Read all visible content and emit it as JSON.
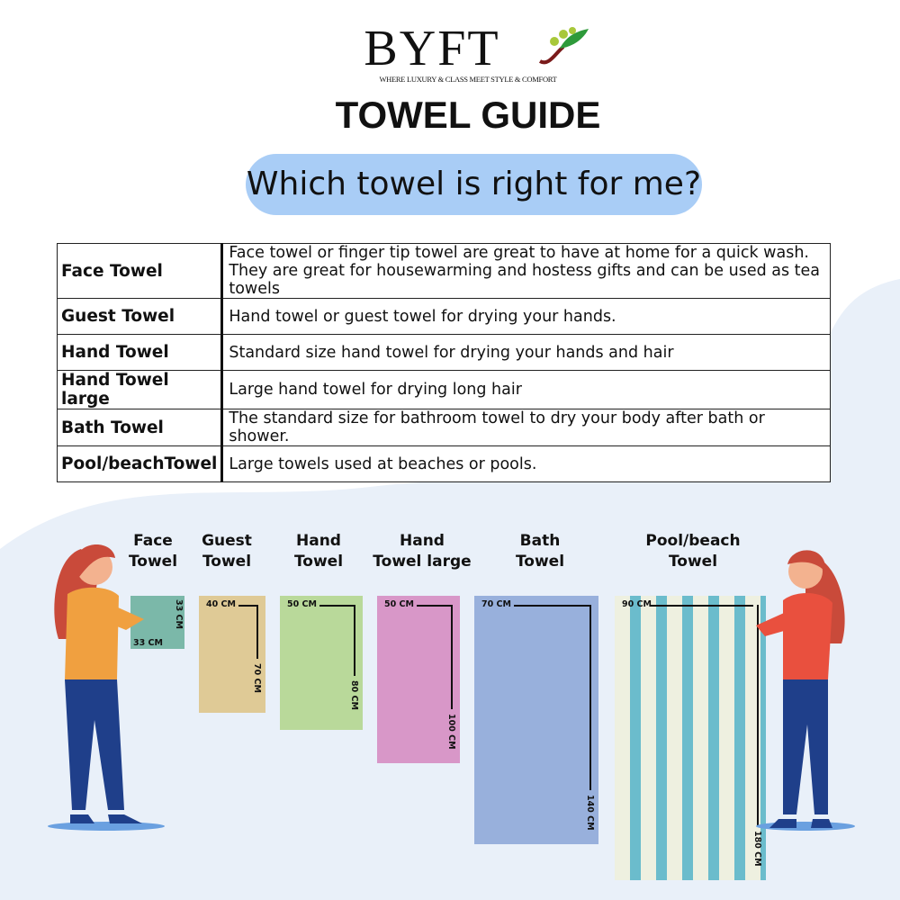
{
  "brand": {
    "name": "BYFT",
    "tagline": "WHERE LUXURY & CLASS MEET STYLE & COMFORT"
  },
  "title": "TOWEL GUIDE",
  "question": "Which towel is right for me?",
  "table": [
    {
      "type": "Face Towel",
      "desc": [
        "Face towel or finger tip towel are great to have at home for a quick wash.",
        "They are great for housewarming and hostess gifts and can be used as tea towels"
      ]
    },
    {
      "type": "Guest Towel",
      "desc": [
        "Hand towel or guest towel for drying your hands."
      ]
    },
    {
      "type": "Hand Towel",
      "desc": [
        "Standard size hand towel for drying your hands and hair"
      ]
    },
    {
      "type": "Hand Towel large",
      "desc": [
        "Large hand towel for drying long hair"
      ]
    },
    {
      "type": "Bath Towel",
      "desc": [
        "The standard size for bathroom towel to dry your body after bath or shower."
      ]
    },
    {
      "type": "Pool/beachTowel",
      "desc": [
        "Large towels used at beaches or pools."
      ]
    }
  ],
  "towels": [
    {
      "label": [
        "Face",
        "Towel"
      ],
      "width": "33 CM",
      "length": "33 CM",
      "color": "#7bb8a9"
    },
    {
      "label": [
        "Guest",
        "Towel"
      ],
      "width": "40 CM",
      "length": "70 CM",
      "color": "#dfca96"
    },
    {
      "label": [
        "Hand",
        "Towel"
      ],
      "width": "50 CM",
      "length": "80 CM",
      "color": "#b9d99a"
    },
    {
      "label": [
        "Hand",
        "Towel large"
      ],
      "width": "50 CM",
      "length": "100 CM",
      "color": "#d897c8"
    },
    {
      "label": [
        "Bath",
        "Towel"
      ],
      "width": "70 CM",
      "length": "140 CM",
      "color": "#98b0dc"
    },
    {
      "label": [
        "Pool/beach",
        "Towel"
      ],
      "width": "90 CM",
      "length": "180 CM",
      "color": "#eef0e0",
      "stripe": "#6bbccc"
    }
  ]
}
